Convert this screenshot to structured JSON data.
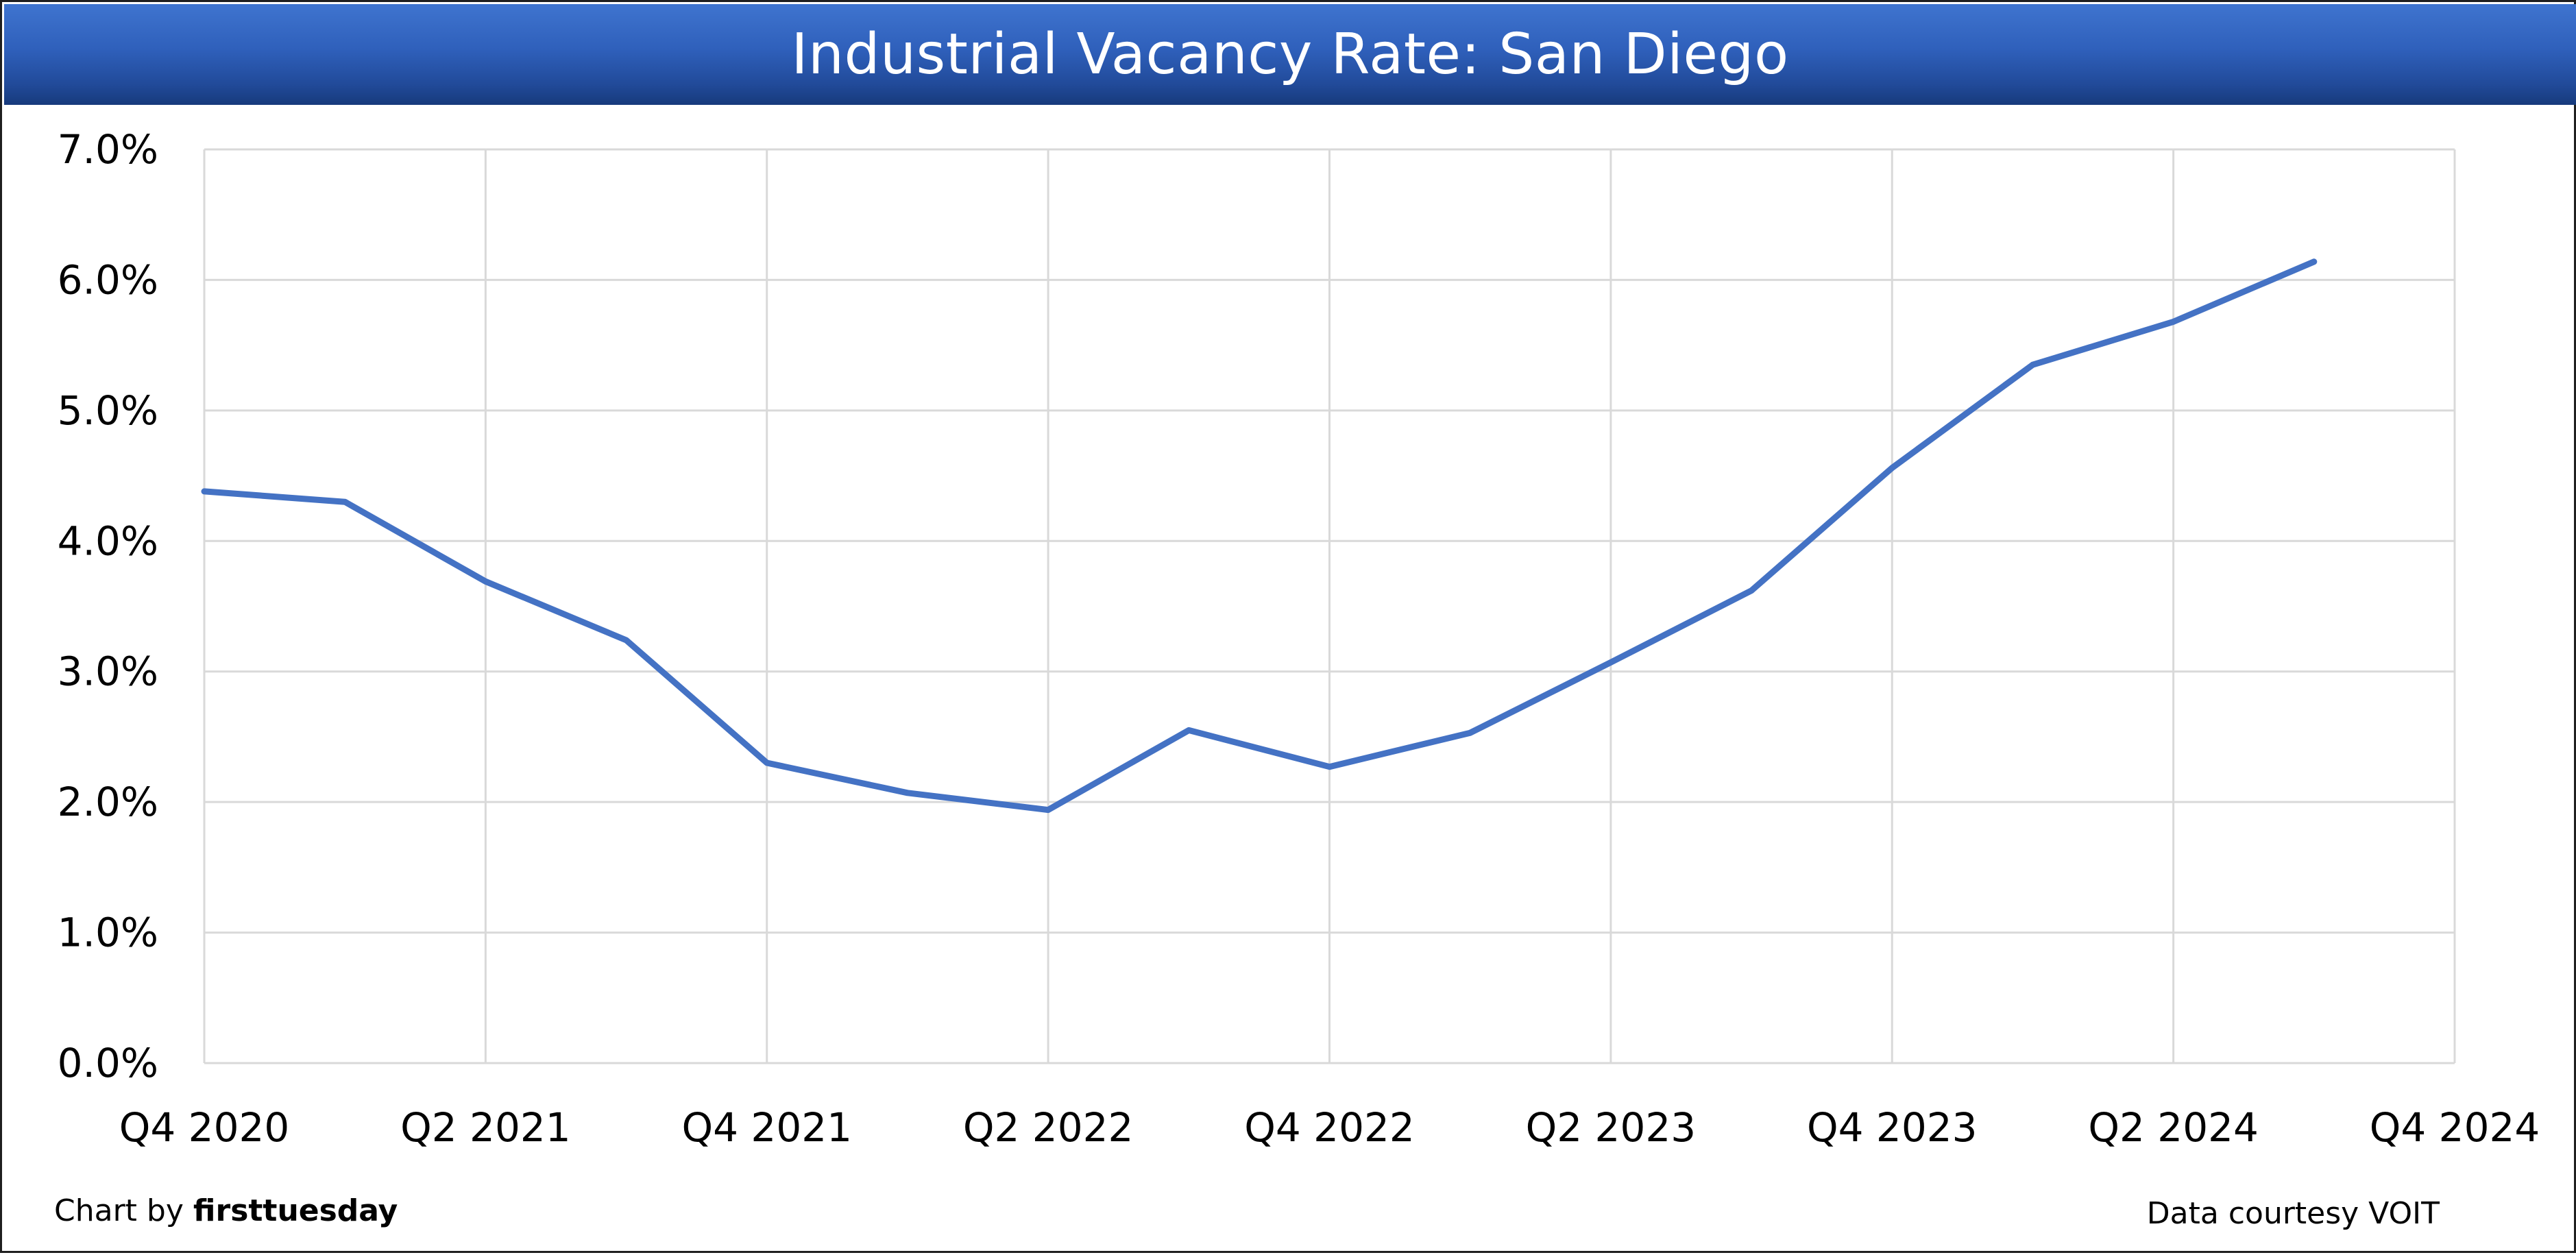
{
  "header": {
    "title": "Industrial Vacancy Rate: San Diego"
  },
  "footer": {
    "credit_prefix": "Chart by",
    "credit_brand": "firsttuesday",
    "source": "Data courtesy VOIT"
  },
  "chart_data": {
    "type": "line",
    "title": "Industrial Vacancy Rate: San Diego",
    "xlabel": "",
    "ylabel": "",
    "x_tick_labels": [
      "Q4 2020",
      "Q2 2021",
      "Q4 2021",
      "Q2 2022",
      "Q4 2022",
      "Q2 2023",
      "Q4 2023",
      "Q2 2024",
      "Q4 2024"
    ],
    "y_tick_labels": [
      "0.0%",
      "1.0%",
      "2.0%",
      "3.0%",
      "4.0%",
      "5.0%",
      "6.0%",
      "7.0%"
    ],
    "ylim": [
      0,
      7
    ],
    "y_unit": "%",
    "grid": true,
    "line_color": "#4472C4",
    "categories": [
      "Q4 2020",
      "Q1 2021",
      "Q2 2021",
      "Q3 2021",
      "Q4 2021",
      "Q1 2022",
      "Q2 2022",
      "Q3 2022",
      "Q4 2022",
      "Q1 2023",
      "Q2 2023",
      "Q3 2023",
      "Q4 2023",
      "Q1 2024",
      "Q2 2024",
      "Q3 2024",
      "Q4 2024"
    ],
    "series": [
      {
        "values": [
          4.38,
          4.3,
          3.69,
          3.24,
          2.3,
          2.07,
          1.94,
          2.55,
          2.27,
          2.53,
          3.07,
          3.62,
          4.56,
          5.35,
          5.68,
          6.14,
          null
        ]
      }
    ]
  }
}
